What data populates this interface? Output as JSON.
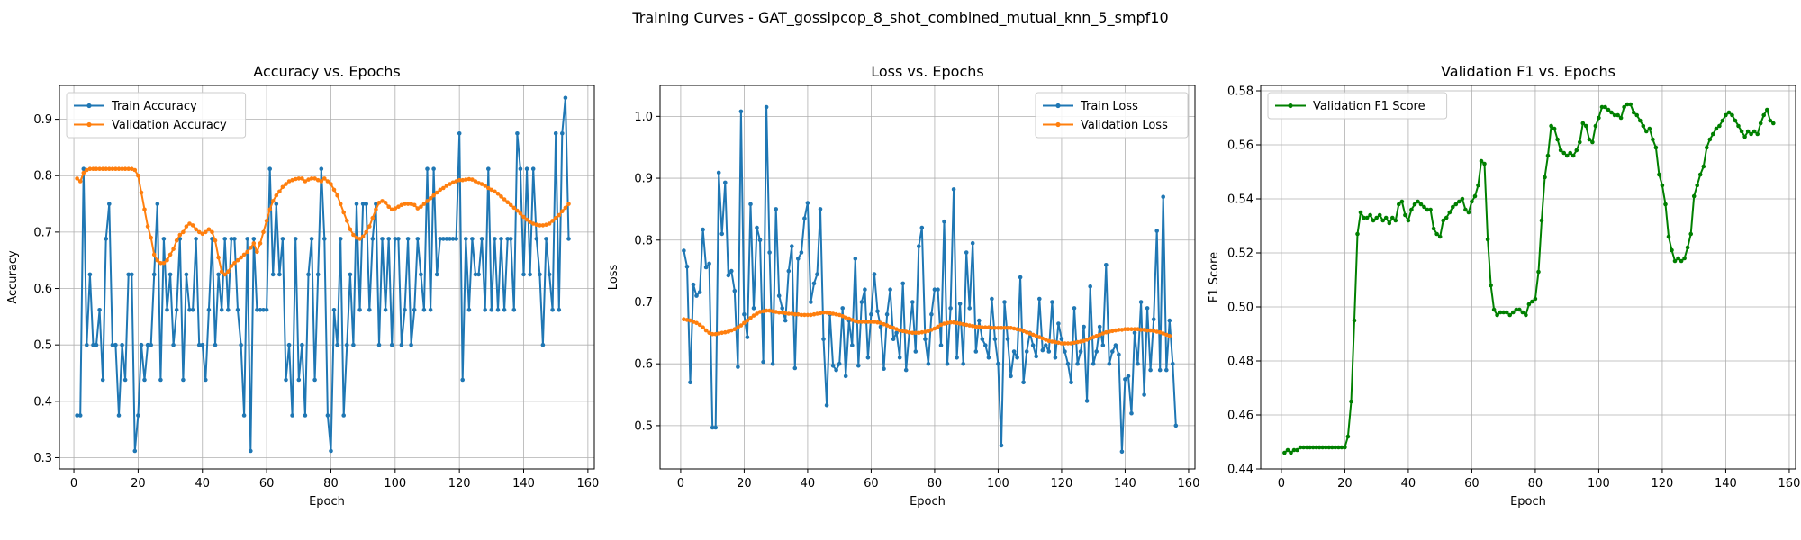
{
  "figure": {
    "suptitle": "Training Curves - GAT_gossipcop_8_shot_combined_mutual_knn_5_smpf10"
  },
  "chart_data": [
    {
      "type": "line",
      "title": "Accuracy vs. Epochs",
      "xlabel": "Epoch",
      "ylabel": "Accuracy",
      "xlim": [
        -4.5,
        162
      ],
      "ylim": [
        0.28,
        0.96
      ],
      "xticks": [
        0,
        20,
        40,
        60,
        80,
        100,
        120,
        140,
        160
      ],
      "yticks": [
        0.3,
        0.4,
        0.5,
        0.6,
        0.7,
        0.8,
        0.9
      ],
      "grid": true,
      "legend_position": "top-left",
      "series": [
        {
          "name": "Train Accuracy",
          "color": "#1f77b4",
          "x_start": 1,
          "x_step": 1,
          "values": [
            0.375,
            0.375,
            0.812,
            0.5,
            0.625,
            0.5,
            0.5,
            0.562,
            0.438,
            0.688,
            0.75,
            0.5,
            0.5,
            0.375,
            0.5,
            0.438,
            0.625,
            0.625,
            0.312,
            0.375,
            0.5,
            0.438,
            0.5,
            0.5,
            0.625,
            0.75,
            0.438,
            0.688,
            0.562,
            0.625,
            0.5,
            0.562,
            0.688,
            0.438,
            0.625,
            0.562,
            0.562,
            0.688,
            0.5,
            0.5,
            0.438,
            0.562,
            0.688,
            0.5,
            0.625,
            0.562,
            0.688,
            0.562,
            0.688,
            0.688,
            0.562,
            0.5,
            0.375,
            0.688,
            0.312,
            0.688,
            0.562,
            0.562,
            0.562,
            0.562,
            0.812,
            0.625,
            0.75,
            0.625,
            0.688,
            0.438,
            0.5,
            0.375,
            0.688,
            0.438,
            0.5,
            0.375,
            0.625,
            0.688,
            0.438,
            0.625,
            0.812,
            0.688,
            0.375,
            0.312,
            0.562,
            0.5,
            0.688,
            0.375,
            0.5,
            0.625,
            0.5,
            0.75,
            0.562,
            0.75,
            0.75,
            0.562,
            0.688,
            0.75,
            0.5,
            0.688,
            0.562,
            0.688,
            0.5,
            0.688,
            0.688,
            0.5,
            0.562,
            0.688,
            0.5,
            0.562,
            0.688,
            0.625,
            0.562,
            0.812,
            0.562,
            0.812,
            0.625,
            0.688,
            0.688,
            0.688,
            0.688,
            0.688,
            0.688,
            0.875,
            0.438,
            0.688,
            0.562,
            0.688,
            0.625,
            0.625,
            0.688,
            0.562,
            0.812,
            0.562,
            0.688,
            0.562,
            0.688,
            0.562,
            0.688,
            0.688,
            0.562,
            0.875,
            0.812,
            0.625,
            0.812,
            0.625,
            0.812,
            0.688,
            0.625,
            0.5,
            0.688,
            0.625,
            0.562,
            0.875,
            0.562,
            0.875,
            0.938,
            0.688
          ]
        },
        {
          "name": "Validation Accuracy",
          "color": "#ff7f0e",
          "x_start": 1,
          "x_step": 1,
          "values": [
            0.795,
            0.79,
            0.805,
            0.81,
            0.812,
            0.812,
            0.812,
            0.812,
            0.812,
            0.812,
            0.812,
            0.812,
            0.812,
            0.812,
            0.812,
            0.812,
            0.812,
            0.812,
            0.81,
            0.8,
            0.77,
            0.74,
            0.71,
            0.69,
            0.66,
            0.65,
            0.645,
            0.645,
            0.65,
            0.66,
            0.67,
            0.685,
            0.695,
            0.7,
            0.71,
            0.715,
            0.712,
            0.705,
            0.7,
            0.697,
            0.7,
            0.705,
            0.7,
            0.685,
            0.655,
            0.63,
            0.625,
            0.63,
            0.64,
            0.645,
            0.65,
            0.655,
            0.66,
            0.665,
            0.672,
            0.68,
            0.665,
            0.68,
            0.7,
            0.72,
            0.74,
            0.755,
            0.765,
            0.772,
            0.78,
            0.785,
            0.79,
            0.792,
            0.794,
            0.795,
            0.795,
            0.79,
            0.793,
            0.795,
            0.795,
            0.792,
            0.79,
            0.795,
            0.79,
            0.785,
            0.775,
            0.765,
            0.75,
            0.735,
            0.72,
            0.705,
            0.695,
            0.69,
            0.688,
            0.692,
            0.7,
            0.71,
            0.725,
            0.74,
            0.752,
            0.755,
            0.752,
            0.745,
            0.74,
            0.742,
            0.745,
            0.748,
            0.75,
            0.75,
            0.75,
            0.748,
            0.742,
            0.745,
            0.75,
            0.755,
            0.76,
            0.765,
            0.77,
            0.775,
            0.778,
            0.782,
            0.785,
            0.788,
            0.79,
            0.792,
            0.792,
            0.793,
            0.794,
            0.793,
            0.79,
            0.787,
            0.785,
            0.782,
            0.778,
            0.775,
            0.772,
            0.768,
            0.763,
            0.758,
            0.753,
            0.748,
            0.743,
            0.738,
            0.733,
            0.727,
            0.722,
            0.718,
            0.715,
            0.713,
            0.712,
            0.712,
            0.713,
            0.715,
            0.72,
            0.725,
            0.73,
            0.737,
            0.743,
            0.75
          ]
        }
      ]
    },
    {
      "type": "line",
      "title": "Loss vs. Epochs",
      "xlabel": "Epoch",
      "ylabel": "Loss",
      "xlim": [
        -6.5,
        162
      ],
      "ylim": [
        0.43,
        1.05
      ],
      "xticks": [
        0,
        20,
        40,
        60,
        80,
        100,
        120,
        140,
        160
      ],
      "yticks": [
        0.5,
        0.6,
        0.7,
        0.8,
        0.9,
        1.0
      ],
      "grid": true,
      "legend_position": "top-right",
      "series": [
        {
          "name": "Train Loss",
          "color": "#1f77b4",
          "x_start": 1,
          "x_step": 1,
          "values": [
            0.783,
            0.757,
            0.57,
            0.728,
            0.71,
            0.716,
            0.817,
            0.756,
            0.762,
            0.497,
            0.497,
            0.909,
            0.81,
            0.893,
            0.743,
            0.75,
            0.718,
            0.595,
            1.008,
            0.68,
            0.643,
            0.858,
            0.69,
            0.82,
            0.8,
            0.603,
            1.015,
            0.78,
            0.6,
            0.85,
            0.71,
            0.69,
            0.67,
            0.75,
            0.79,
            0.593,
            0.77,
            0.78,
            0.835,
            0.86,
            0.7,
            0.73,
            0.745,
            0.85,
            0.64,
            0.533,
            0.68,
            0.597,
            0.59,
            0.6,
            0.69,
            0.58,
            0.67,
            0.63,
            0.77,
            0.597,
            0.7,
            0.72,
            0.61,
            0.68,
            0.745,
            0.685,
            0.66,
            0.592,
            0.68,
            0.72,
            0.64,
            0.65,
            0.61,
            0.73,
            0.59,
            0.65,
            0.7,
            0.62,
            0.79,
            0.82,
            0.64,
            0.6,
            0.68,
            0.72,
            0.72,
            0.63,
            0.83,
            0.6,
            0.69,
            0.882,
            0.61,
            0.697,
            0.6,
            0.78,
            0.69,
            0.795,
            0.62,
            0.67,
            0.64,
            0.63,
            0.61,
            0.705,
            0.64,
            0.6,
            0.468,
            0.7,
            0.64,
            0.58,
            0.62,
            0.61,
            0.74,
            0.57,
            0.62,
            0.65,
            0.63,
            0.612,
            0.705,
            0.622,
            0.63,
            0.62,
            0.7,
            0.61,
            0.665,
            0.64,
            0.62,
            0.6,
            0.57,
            0.69,
            0.6,
            0.62,
            0.66,
            0.54,
            0.725,
            0.6,
            0.62,
            0.66,
            0.63,
            0.76,
            0.6,
            0.62,
            0.63,
            0.615,
            0.458,
            0.575,
            0.58,
            0.52,
            0.65,
            0.6,
            0.7,
            0.55,
            0.69,
            0.59,
            0.672,
            0.815,
            0.59,
            0.87,
            0.59,
            0.67,
            0.6,
            0.5
          ]
        },
        {
          "name": "Validation Loss",
          "color": "#ff7f0e",
          "x_start": 1,
          "x_step": 1,
          "values": [
            0.672,
            0.671,
            0.67,
            0.668,
            0.666,
            0.663,
            0.659,
            0.654,
            0.65,
            0.648,
            0.648,
            0.649,
            0.65,
            0.651,
            0.652,
            0.654,
            0.656,
            0.659,
            0.662,
            0.666,
            0.67,
            0.674,
            0.678,
            0.681,
            0.684,
            0.685,
            0.686,
            0.686,
            0.685,
            0.684,
            0.683,
            0.683,
            0.682,
            0.681,
            0.681,
            0.68,
            0.68,
            0.679,
            0.679,
            0.679,
            0.679,
            0.68,
            0.681,
            0.682,
            0.683,
            0.683,
            0.682,
            0.681,
            0.68,
            0.679,
            0.677,
            0.675,
            0.673,
            0.671,
            0.669,
            0.668,
            0.668,
            0.668,
            0.668,
            0.668,
            0.668,
            0.667,
            0.666,
            0.664,
            0.662,
            0.66,
            0.658,
            0.656,
            0.654,
            0.653,
            0.652,
            0.651,
            0.65,
            0.65,
            0.65,
            0.651,
            0.652,
            0.653,
            0.655,
            0.657,
            0.66,
            0.663,
            0.665,
            0.666,
            0.667,
            0.667,
            0.666,
            0.665,
            0.664,
            0.663,
            0.662,
            0.661,
            0.66,
            0.66,
            0.659,
            0.659,
            0.659,
            0.658,
            0.658,
            0.658,
            0.658,
            0.658,
            0.658,
            0.658,
            0.657,
            0.656,
            0.655,
            0.653,
            0.651,
            0.649,
            0.647,
            0.645,
            0.643,
            0.641,
            0.639,
            0.637,
            0.636,
            0.635,
            0.634,
            0.633,
            0.633,
            0.633,
            0.633,
            0.634,
            0.635,
            0.636,
            0.637,
            0.639,
            0.641,
            0.643,
            0.645,
            0.647,
            0.649,
            0.651,
            0.652,
            0.653,
            0.654,
            0.655,
            0.655,
            0.656,
            0.656,
            0.656,
            0.656,
            0.656,
            0.655,
            0.655,
            0.654,
            0.654,
            0.653,
            0.652,
            0.651,
            0.649,
            0.647,
            0.645
          ]
        }
      ]
    },
    {
      "type": "line",
      "title": "Validation F1 vs. Epochs",
      "xlabel": "Epoch",
      "ylabel": "F1 Score",
      "xlim": [
        -6.5,
        162
      ],
      "ylim": [
        0.44,
        0.582
      ],
      "xticks": [
        0,
        20,
        40,
        60,
        80,
        100,
        120,
        140,
        160
      ],
      "yticks": [
        0.44,
        0.46,
        0.48,
        0.5,
        0.52,
        0.54,
        0.56,
        0.58
      ],
      "grid": true,
      "legend_position": "top-left",
      "series": [
        {
          "name": "Validation F1 Score",
          "color": "#008000",
          "x_start": 1,
          "x_step": 1,
          "values": [
            0.446,
            0.447,
            0.446,
            0.447,
            0.447,
            0.448,
            0.448,
            0.448,
            0.448,
            0.448,
            0.448,
            0.448,
            0.448,
            0.448,
            0.448,
            0.448,
            0.448,
            0.448,
            0.448,
            0.448,
            0.452,
            0.465,
            0.495,
            0.527,
            0.535,
            0.533,
            0.533,
            0.534,
            0.532,
            0.533,
            0.534,
            0.532,
            0.533,
            0.531,
            0.533,
            0.532,
            0.538,
            0.539,
            0.534,
            0.532,
            0.536,
            0.538,
            0.539,
            0.538,
            0.537,
            0.536,
            0.536,
            0.529,
            0.527,
            0.526,
            0.532,
            0.533,
            0.535,
            0.537,
            0.538,
            0.539,
            0.54,
            0.536,
            0.535,
            0.539,
            0.541,
            0.545,
            0.554,
            0.553,
            0.525,
            0.508,
            0.499,
            0.497,
            0.498,
            0.498,
            0.498,
            0.497,
            0.498,
            0.499,
            0.499,
            0.498,
            0.497,
            0.501,
            0.502,
            0.503,
            0.513,
            0.532,
            0.548,
            0.556,
            0.567,
            0.566,
            0.562,
            0.558,
            0.557,
            0.556,
            0.557,
            0.556,
            0.558,
            0.561,
            0.568,
            0.567,
            0.562,
            0.561,
            0.567,
            0.57,
            0.574,
            0.574,
            0.573,
            0.572,
            0.571,
            0.571,
            0.57,
            0.574,
            0.575,
            0.575,
            0.572,
            0.571,
            0.569,
            0.567,
            0.565,
            0.566,
            0.562,
            0.559,
            0.549,
            0.545,
            0.538,
            0.526,
            0.521,
            0.517,
            0.518,
            0.517,
            0.518,
            0.522,
            0.527,
            0.541,
            0.545,
            0.549,
            0.552,
            0.559,
            0.562,
            0.564,
            0.566,
            0.567,
            0.569,
            0.571,
            0.572,
            0.571,
            0.569,
            0.567,
            0.565,
            0.563,
            0.565,
            0.564,
            0.565,
            0.564,
            0.568,
            0.571,
            0.573,
            0.569,
            0.568
          ]
        }
      ]
    }
  ]
}
